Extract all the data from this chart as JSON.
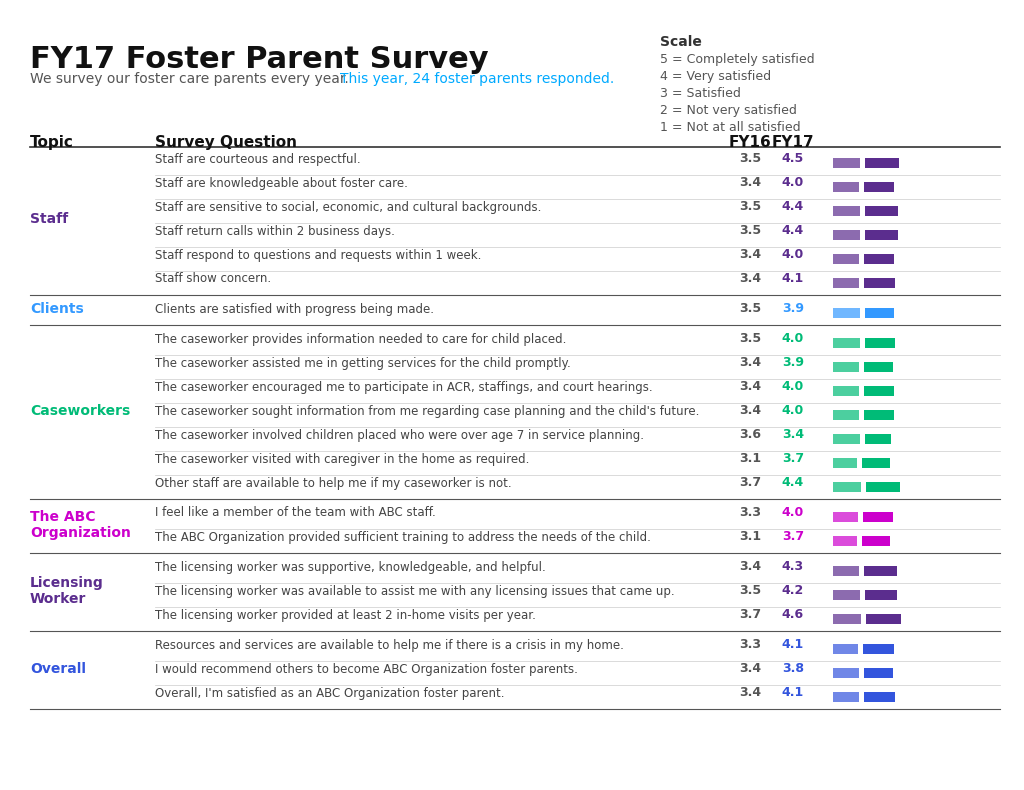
{
  "title": "FY17 Foster Parent Survey",
  "subtitle_plain": "We survey our foster care parents every year. ",
  "subtitle_highlight": "This year, 24 foster parents responded.",
  "subtitle_highlight_color": "#00AAFF",
  "subtitle_plain_color": "#555555",
  "scale_title": "Scale",
  "scale_items": [
    "5 = Completely satisfied",
    "4 = Very satisfied",
    "3 = Satisfied",
    "2 = Not very satisfied",
    "1 = Not at all satisfied"
  ],
  "col_headers": [
    "Topic",
    "Survey Question",
    "FY16",
    "FY17"
  ],
  "sections": [
    {
      "topic": "Staff",
      "topic_color": "#5B2D8E",
      "bar_color_fy16": "#5B2D8E",
      "bar_color_fy17": "#5B2D8E",
      "rows": [
        {
          "question": "Staff are courteous and respectful.",
          "fy16": 3.5,
          "fy17": 4.5
        },
        {
          "question": "Staff are knowledgeable about foster care.",
          "fy16": 3.4,
          "fy17": 4.0
        },
        {
          "question": "Staff are sensitive to social, economic, and cultural backgrounds.",
          "fy16": 3.5,
          "fy17": 4.4
        },
        {
          "question": "Staff return calls within 2 business days.",
          "fy16": 3.5,
          "fy17": 4.4
        },
        {
          "question": "Staff respond to questions and requests within 1 week.",
          "fy16": 3.4,
          "fy17": 4.0
        },
        {
          "question": "Staff show concern.",
          "fy16": 3.4,
          "fy17": 4.1
        }
      ]
    },
    {
      "topic": "Clients",
      "topic_color": "#3399FF",
      "bar_color_fy16": "#3399FF",
      "bar_color_fy17": "#3399FF",
      "rows": [
        {
          "question": "Clients are satisfied with progress being made.",
          "fy16": 3.5,
          "fy17": 3.9
        }
      ]
    },
    {
      "topic": "Caseworkers",
      "topic_color": "#00BB77",
      "bar_color_fy16": "#00BB77",
      "bar_color_fy17": "#00BB77",
      "rows": [
        {
          "question": "The caseworker provides information needed to care for child placed.",
          "fy16": 3.5,
          "fy17": 4.0
        },
        {
          "question": "The caseworker assisted me in getting services for the child promptly.",
          "fy16": 3.4,
          "fy17": 3.9
        },
        {
          "question": "The caseworker encouraged me to participate in ACR, staffings, and court hearings.",
          "fy16": 3.4,
          "fy17": 4.0
        },
        {
          "question": "The caseworker sought information from me regarding case planning and the child's future.",
          "fy16": 3.4,
          "fy17": 4.0
        },
        {
          "question": "The caseworker involved children placed who were over age 7 in service planning.",
          "fy16": 3.6,
          "fy17": 3.4
        },
        {
          "question": "The caseworker visited with caregiver in the home as required.",
          "fy16": 3.1,
          "fy17": 3.7
        },
        {
          "question": "Other staff are available to help me if my caseworker is not.",
          "fy16": 3.7,
          "fy17": 4.4
        }
      ]
    },
    {
      "topic": "The ABC\nOrganization",
      "topic_color": "#CC00CC",
      "bar_color_fy16": "#CC00CC",
      "bar_color_fy17": "#CC00CC",
      "rows": [
        {
          "question": "I feel like a member of the team with ABC staff.",
          "fy16": 3.3,
          "fy17": 4.0
        },
        {
          "question": "The ABC Organization provided sufficient training to address the needs of the child.",
          "fy16": 3.1,
          "fy17": 3.7
        }
      ]
    },
    {
      "topic": "Licensing\nWorker",
      "topic_color": "#5B2D8E",
      "bar_color_fy16": "#5B2D8E",
      "bar_color_fy17": "#5B2D8E",
      "rows": [
        {
          "question": "The licensing worker was supportive, knowledgeable, and helpful.",
          "fy16": 3.4,
          "fy17": 4.3
        },
        {
          "question": "The licensing worker was available to assist me with any licensing issues that came up.",
          "fy16": 3.5,
          "fy17": 4.2
        },
        {
          "question": "The licensing worker provided at least 2 in-home visits per year.",
          "fy16": 3.7,
          "fy17": 4.6
        }
      ]
    },
    {
      "topic": "Overall",
      "topic_color": "#3355DD",
      "bar_color_fy16": "#3355DD",
      "bar_color_fy17": "#3355DD",
      "rows": [
        {
          "question": "Resources and services are available to help me if there is a crisis in my home.",
          "fy16": 3.3,
          "fy17": 4.1
        },
        {
          "question": "I would recommend others to become ABC Organization foster parents.",
          "fy16": 3.4,
          "fy17": 3.8
        },
        {
          "question": "Overall, I'm satisfied as an ABC Organization foster parent.",
          "fy16": 3.4,
          "fy17": 4.1
        }
      ]
    }
  ],
  "background_color": "#FFFFFF",
  "header_line_color": "#333333",
  "row_line_color": "#CCCCCC",
  "section_line_color": "#555555",
  "value_color_fy16": "#555555",
  "value_color_fy17_map": {
    "Staff": "#5B2D8E",
    "Clients": "#3399FF",
    "Caseworkers": "#00BB77",
    "The ABC\nOrganization": "#CC00CC",
    "Licensing\nWorker": "#5B2D8E",
    "Overall": "#3355DD"
  }
}
